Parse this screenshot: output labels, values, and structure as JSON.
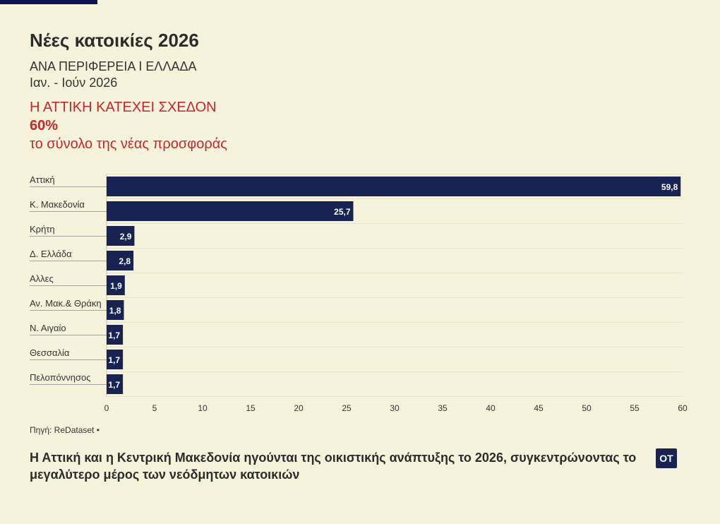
{
  "header": {
    "title": "Νέες κατοικίες 2026",
    "subtitle": "ΑΝΑ ΠΕΡΙΦΕΡΕΙΑ Ι ΕΛΛΑΔΑ",
    "period": "Ιαν. - Ιούν 2026",
    "highlight_line1": "Η ΑΤΤΙΚΗ ΚΑΤΕΧΕΙ ΣΧΕΔΟΝ",
    "highlight_value": "60%",
    "highlight_line2": "το σύνολο της νέας προσφοράς"
  },
  "chart_data": {
    "type": "bar",
    "orientation": "horizontal",
    "categories": [
      "Αττική",
      "Κ. Μακεδονία",
      "Κρήτη",
      "Δ. Ελλάδα",
      "Αλλες",
      "Αν. Μακ.& Θράκη",
      "Ν. Αιγαίο",
      "Θεσσαλία",
      "Πελοπόννησος"
    ],
    "values": [
      59.8,
      25.7,
      2.9,
      2.8,
      1.9,
      1.8,
      1.7,
      1.7,
      1.7
    ],
    "value_labels": [
      "59,8",
      "25,7",
      "2,9",
      "2,8",
      "1,9",
      "1,8",
      "1,7",
      "1,7",
      "1,7"
    ],
    "xlim": [
      0,
      60
    ],
    "xticks": [
      0,
      5,
      10,
      15,
      20,
      25,
      30,
      35,
      40,
      45,
      50,
      55,
      60
    ],
    "grid": true,
    "bar_color": "#182354"
  },
  "footer": {
    "source": "Πηγή: ReDataset •",
    "caption": "Η Αττική και η Κεντρική Μακεδονία ηγούνται της οικιστικής ανάπτυξης το 2026, συγκεντρώνοντας το μεγαλύτερο μέρος των νεόδμητων κατοικιών",
    "logo": "ΟΤ"
  },
  "colors": {
    "background": "#f5f3dc",
    "accent": "#c8262a",
    "bar": "#182354"
  }
}
